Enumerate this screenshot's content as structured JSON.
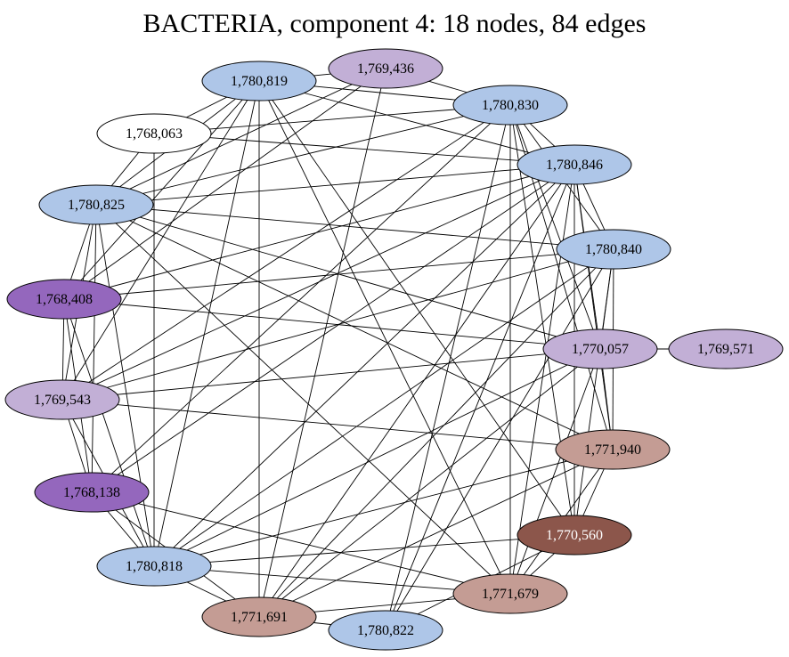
{
  "title": "BACTERIA, component 4: 18 nodes, 84 edges",
  "palette": {
    "blue": "#aec6e8",
    "lavender": "#c2afd6",
    "purple": "#9467bd",
    "rose": "#c49c94",
    "brown": "#8c564b",
    "white": "#ffffff"
  },
  "nodes": [
    {
      "id": "n780819",
      "label": "1,780,819",
      "fill": "#aec6e8",
      "text": "#000000"
    },
    {
      "id": "n769436",
      "label": "1,769,436",
      "fill": "#c2afd6",
      "text": "#000000"
    },
    {
      "id": "n780830",
      "label": "1,780,830",
      "fill": "#aec6e8",
      "text": "#000000"
    },
    {
      "id": "n768063",
      "label": "1,768,063",
      "fill": "#ffffff",
      "text": "#000000"
    },
    {
      "id": "n780846",
      "label": "1,780,846",
      "fill": "#aec6e8",
      "text": "#000000"
    },
    {
      "id": "n780825",
      "label": "1,780,825",
      "fill": "#aec6e8",
      "text": "#000000"
    },
    {
      "id": "n780840",
      "label": "1,780,840",
      "fill": "#aec6e8",
      "text": "#000000"
    },
    {
      "id": "n768408",
      "label": "1,768,408",
      "fill": "#9467bd",
      "text": "#000000"
    },
    {
      "id": "n770057",
      "label": "1,770,057",
      "fill": "#c2afd6",
      "text": "#000000"
    },
    {
      "id": "n769571",
      "label": "1,769,571",
      "fill": "#c2afd6",
      "text": "#000000"
    },
    {
      "id": "n769543",
      "label": "1,769,543",
      "fill": "#c2afd6",
      "text": "#000000"
    },
    {
      "id": "n771940",
      "label": "1,771,940",
      "fill": "#c49c94",
      "text": "#000000"
    },
    {
      "id": "n768138",
      "label": "1,768,138",
      "fill": "#9467bd",
      "text": "#000000"
    },
    {
      "id": "n770560",
      "label": "1,770,560",
      "fill": "#8c564b",
      "text": "#ffffff"
    },
    {
      "id": "n780818",
      "label": "1,780,818",
      "fill": "#aec6e8",
      "text": "#000000"
    },
    {
      "id": "n771679",
      "label": "1,771,679",
      "fill": "#c49c94",
      "text": "#000000"
    },
    {
      "id": "n771691",
      "label": "1,771,691",
      "fill": "#c49c94",
      "text": "#000000"
    },
    {
      "id": "n780822",
      "label": "1,780,822",
      "fill": "#aec6e8",
      "text": "#000000"
    }
  ],
  "edges": [
    [
      "n780819",
      "n769436"
    ],
    [
      "n780819",
      "n780830"
    ],
    [
      "n780819",
      "n768063"
    ],
    [
      "n780819",
      "n780846"
    ],
    [
      "n780819",
      "n780825"
    ],
    [
      "n780819",
      "n768408"
    ],
    [
      "n780819",
      "n769543"
    ],
    [
      "n780819",
      "n780818"
    ],
    [
      "n780819",
      "n771691"
    ],
    [
      "n780819",
      "n771679"
    ],
    [
      "n780819",
      "n770560"
    ],
    [
      "n769436",
      "n780830"
    ],
    [
      "n769436",
      "n780825"
    ],
    [
      "n769436",
      "n768408"
    ],
    [
      "n769436",
      "n771691"
    ],
    [
      "n780830",
      "n768063"
    ],
    [
      "n780830",
      "n780846"
    ],
    [
      "n780830",
      "n780840"
    ],
    [
      "n780830",
      "n780825"
    ],
    [
      "n780830",
      "n769543"
    ],
    [
      "n780830",
      "n768138"
    ],
    [
      "n780830",
      "n771940"
    ],
    [
      "n780830",
      "n770560"
    ],
    [
      "n780830",
      "n771679"
    ],
    [
      "n780830",
      "n780822"
    ],
    [
      "n780830",
      "n770057"
    ],
    [
      "n768063",
      "n780846"
    ],
    [
      "n768063",
      "n780825"
    ],
    [
      "n768063",
      "n780818"
    ],
    [
      "n780846",
      "n780840"
    ],
    [
      "n780846",
      "n780825"
    ],
    [
      "n780846",
      "n768408"
    ],
    [
      "n780846",
      "n769543"
    ],
    [
      "n780846",
      "n768138"
    ],
    [
      "n780846",
      "n770057"
    ],
    [
      "n780846",
      "n771940"
    ],
    [
      "n780846",
      "n770560"
    ],
    [
      "n780846",
      "n771679"
    ],
    [
      "n780846",
      "n780822"
    ],
    [
      "n780846",
      "n771691"
    ],
    [
      "n780846",
      "n780818"
    ],
    [
      "n780825",
      "n768408"
    ],
    [
      "n780825",
      "n769543"
    ],
    [
      "n780825",
      "n768138"
    ],
    [
      "n780825",
      "n780840"
    ],
    [
      "n780825",
      "n770057"
    ],
    [
      "n780825",
      "n771940"
    ],
    [
      "n780825",
      "n771679"
    ],
    [
      "n780825",
      "n780818"
    ],
    [
      "n780840",
      "n768408"
    ],
    [
      "n780840",
      "n769543"
    ],
    [
      "n780840",
      "n770057"
    ],
    [
      "n780840",
      "n771940"
    ],
    [
      "n780840",
      "n770560"
    ],
    [
      "n780840",
      "n780818"
    ],
    [
      "n780840",
      "n771691"
    ],
    [
      "n780840",
      "n780822"
    ],
    [
      "n768408",
      "n769543"
    ],
    [
      "n768408",
      "n768138"
    ],
    [
      "n768408",
      "n780818"
    ],
    [
      "n768408",
      "n770057"
    ],
    [
      "n770057",
      "n769571"
    ],
    [
      "n770057",
      "n771940"
    ],
    [
      "n770057",
      "n771679"
    ],
    [
      "n770057",
      "n769543"
    ],
    [
      "n770057",
      "n780818"
    ],
    [
      "n770057",
      "n771691"
    ],
    [
      "n769543",
      "n768138"
    ],
    [
      "n769543",
      "n780818"
    ],
    [
      "n769543",
      "n771940"
    ],
    [
      "n771940",
      "n770560"
    ],
    [
      "n771940",
      "n771679"
    ],
    [
      "n771940",
      "n771691"
    ],
    [
      "n771940",
      "n780818"
    ],
    [
      "n768138",
      "n780818"
    ],
    [
      "n768138",
      "n771691"
    ],
    [
      "n768138",
      "n771679"
    ],
    [
      "n770560",
      "n771679"
    ],
    [
      "n770560",
      "n780818"
    ],
    [
      "n770560",
      "n780822"
    ],
    [
      "n780818",
      "n771691"
    ],
    [
      "n780818",
      "n771679"
    ],
    [
      "n771691",
      "n780822"
    ],
    [
      "n771691",
      "n771679"
    ]
  ]
}
